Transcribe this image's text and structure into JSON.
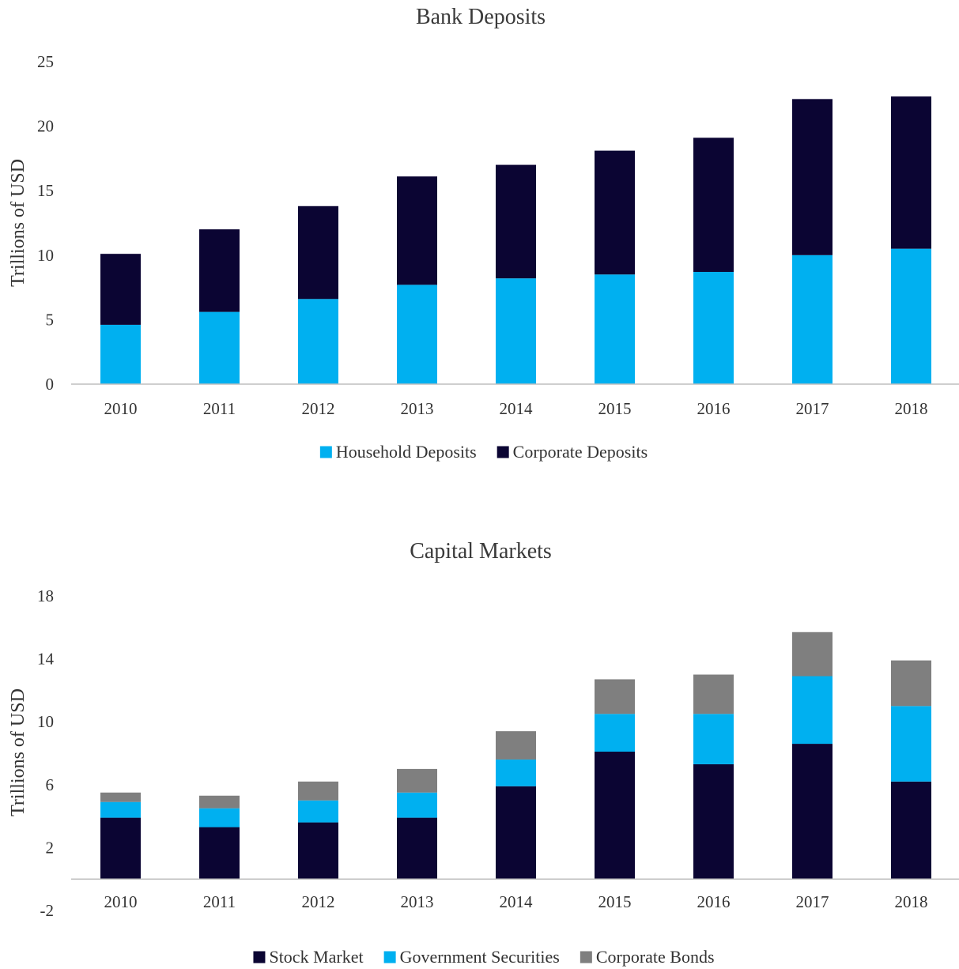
{
  "chart_data": [
    {
      "type": "bar",
      "stacked": true,
      "title": "Bank Deposits",
      "xlabel": "",
      "ylabel": "Trillions of USD",
      "ylim": [
        0,
        25
      ],
      "yticks": [
        "0",
        "5",
        "10",
        "15",
        "20",
        "25"
      ],
      "grid": false,
      "legend_position": "bottom",
      "categories": [
        "2010",
        "2011",
        "2012",
        "2013",
        "2014",
        "2015",
        "2016",
        "2017",
        "2018"
      ],
      "series": [
        {
          "name": "Household Deposits",
          "color": "#00b0f0",
          "values": [
            4.6,
            5.6,
            6.6,
            7.7,
            8.2,
            8.5,
            8.7,
            10.0,
            10.5
          ]
        },
        {
          "name": "Corporate Deposits",
          "color": "#0b0533",
          "values": [
            5.5,
            6.4,
            7.2,
            8.4,
            8.8,
            9.6,
            10.4,
            12.1,
            11.8
          ]
        }
      ]
    },
    {
      "type": "bar",
      "stacked": true,
      "title": "Capital Markets",
      "xlabel": "",
      "ylabel": "Trillions of USD",
      "ylim": [
        -2,
        18
      ],
      "yticks": [
        "-2",
        "2",
        "6",
        "10",
        "14",
        "18"
      ],
      "grid": false,
      "legend_position": "bottom",
      "categories": [
        "2010",
        "2011",
        "2012",
        "2013",
        "2014",
        "2015",
        "2016",
        "2017",
        "2018"
      ],
      "series": [
        {
          "name": "Stock Market",
          "color": "#0b0533",
          "values": [
            3.9,
            3.3,
            3.6,
            3.9,
            5.9,
            8.1,
            7.3,
            8.6,
            6.2
          ]
        },
        {
          "name": "Government Securities",
          "color": "#00b0f0",
          "values": [
            1.0,
            1.2,
            1.4,
            1.6,
            1.7,
            2.4,
            3.2,
            4.3,
            4.8
          ]
        },
        {
          "name": "Corporate Bonds",
          "color": "#7f7f7f",
          "values": [
            0.6,
            0.8,
            1.2,
            1.5,
            1.8,
            2.2,
            2.5,
            2.8,
            2.9
          ]
        }
      ]
    }
  ]
}
